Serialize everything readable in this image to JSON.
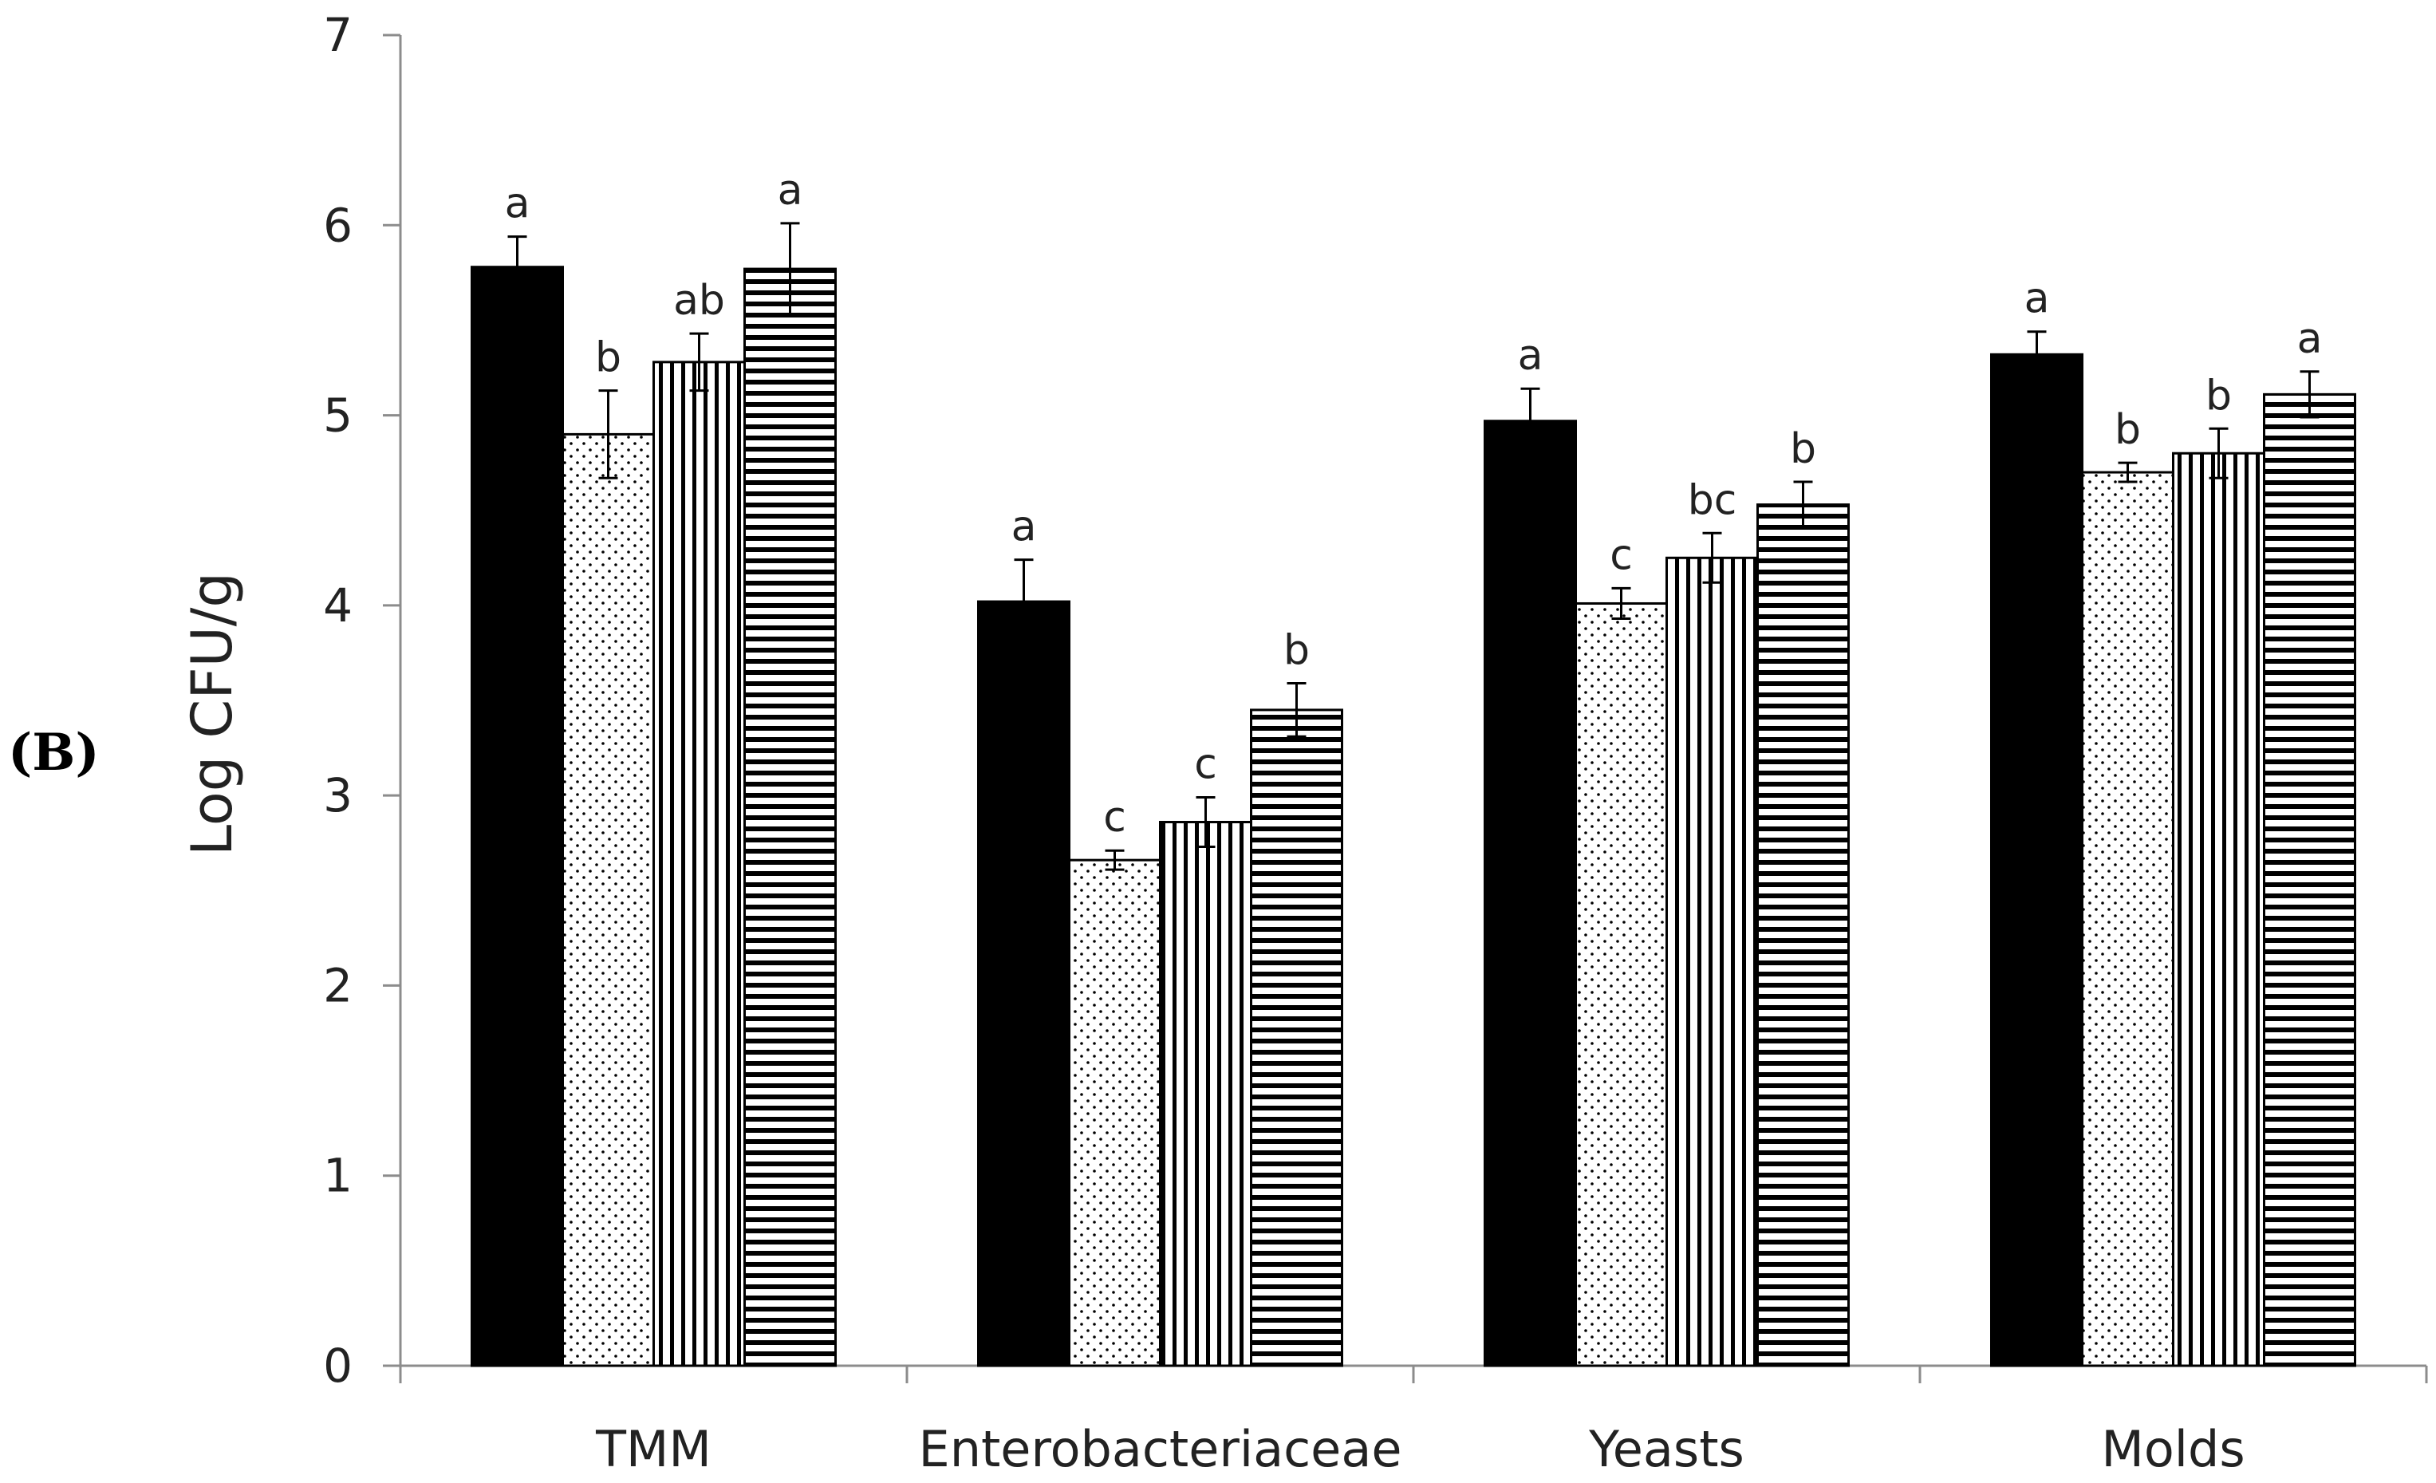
{
  "panel_label": "(B)",
  "chart_data": {
    "type": "bar",
    "title": "",
    "xlabel": "",
    "ylabel": "Log CFU/g",
    "ylim": [
      0,
      7
    ],
    "yticks": [
      "0",
      "1",
      "2",
      "3",
      "4",
      "5",
      "6",
      "7"
    ],
    "grid": false,
    "legend": "none",
    "categories": [
      "TMM",
      "Enterobacteriaceae",
      "Yeasts",
      "Molds"
    ],
    "series": [
      {
        "name": "solid black",
        "pattern": "solid",
        "values": [
          5.78,
          4.02,
          4.97,
          5.32
        ],
        "errors": [
          0.16,
          0.22,
          0.17,
          0.12
        ],
        "labels": [
          "a",
          "a",
          "a",
          "a"
        ]
      },
      {
        "name": "dotted",
        "pattern": "dots",
        "values": [
          4.9,
          2.66,
          4.01,
          4.7
        ],
        "errors": [
          0.23,
          0.05,
          0.08,
          0.05
        ],
        "labels": [
          "b",
          "c",
          "c",
          "b"
        ]
      },
      {
        "name": "vertical stripes",
        "pattern": "vertical",
        "values": [
          5.28,
          2.86,
          4.25,
          4.8
        ],
        "errors": [
          0.15,
          0.13,
          0.13,
          0.13
        ],
        "labels": [
          "ab",
          "c",
          "bc",
          "b"
        ]
      },
      {
        "name": "horizontal stripes",
        "pattern": "horizontal",
        "values": [
          5.77,
          3.45,
          4.53,
          5.11
        ],
        "errors": [
          0.24,
          0.14,
          0.12,
          0.12
        ],
        "labels": [
          "a",
          "b",
          "b",
          "a"
        ]
      }
    ]
  }
}
